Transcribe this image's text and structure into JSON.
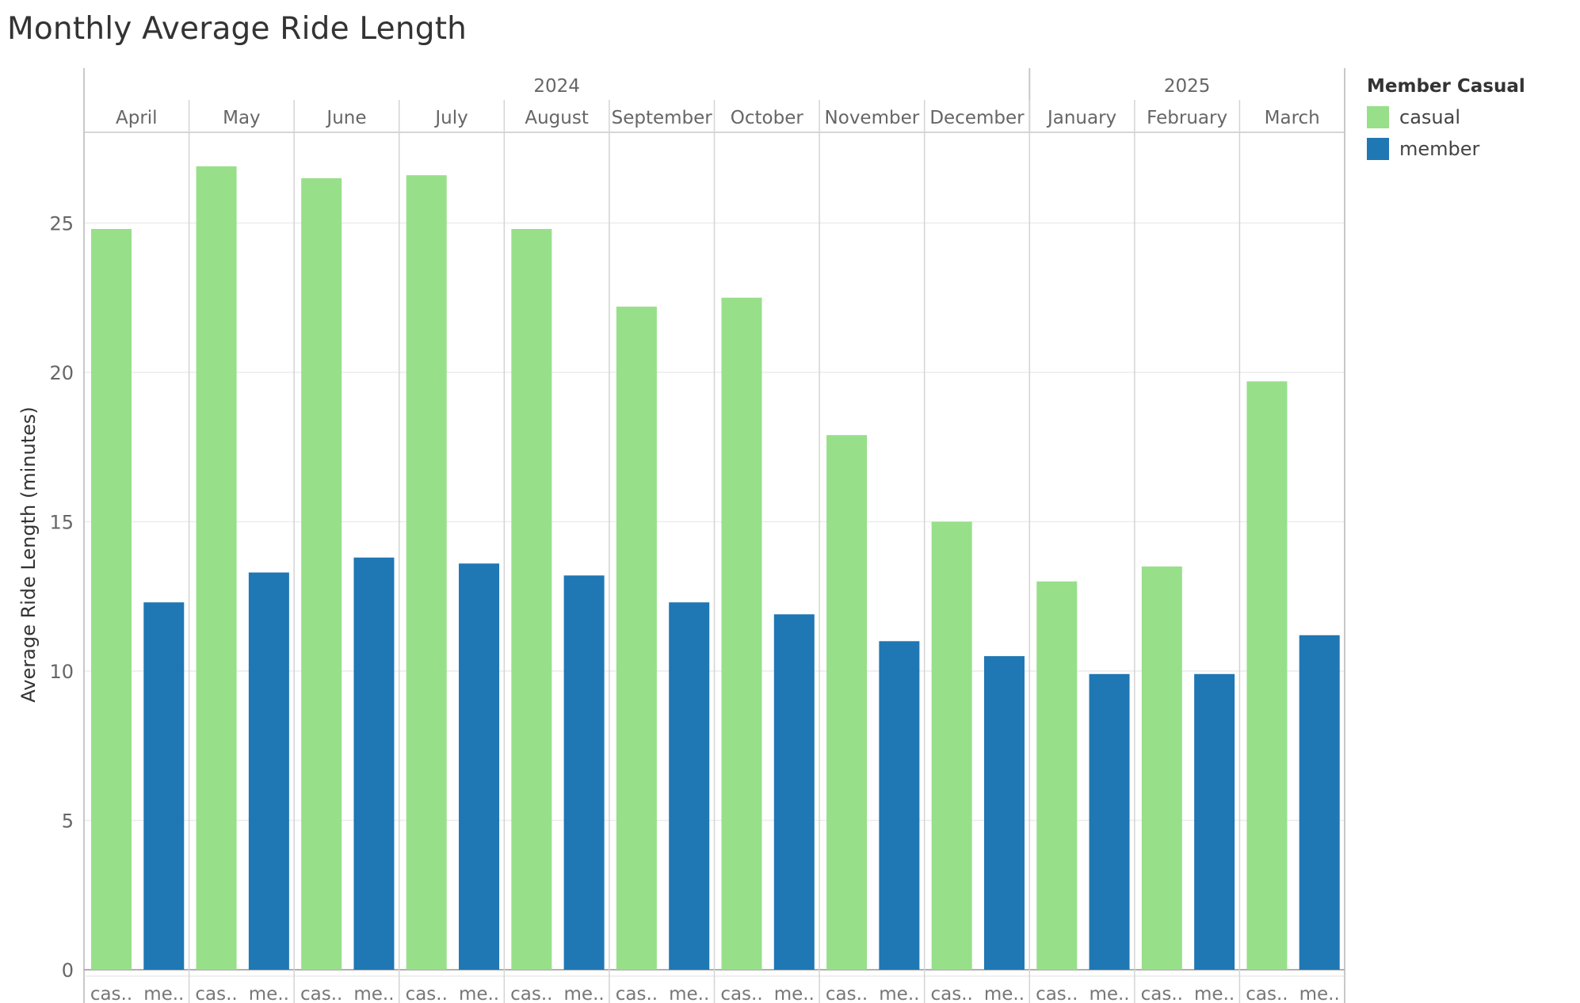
{
  "chart_data": {
    "type": "bar",
    "title": "Monthly Average Ride Length",
    "ylabel": "Average Ride Length (minutes)",
    "xlabel": "",
    "ylim": [
      0,
      28
    ],
    "yticks": [
      0,
      5,
      10,
      15,
      20,
      25
    ],
    "grid": true,
    "legend_position": "right",
    "legend_title": "Member Casual",
    "years": [
      {
        "label": "2024",
        "months": 9
      },
      {
        "label": "2025",
        "months": 3
      }
    ],
    "categories": [
      "April",
      "May",
      "June",
      "July",
      "August",
      "September",
      "October",
      "November",
      "December",
      "January",
      "February",
      "March"
    ],
    "sub_categories": [
      "cas..",
      "me.."
    ],
    "series": [
      {
        "name": "casual",
        "color": "#98df8a",
        "values": [
          24.8,
          26.9,
          26.5,
          26.6,
          24.8,
          22.2,
          22.5,
          17.9,
          15.0,
          13.0,
          13.5,
          19.7
        ]
      },
      {
        "name": "member",
        "color": "#1f77b4",
        "values": [
          12.3,
          13.3,
          13.8,
          13.6,
          13.2,
          12.3,
          11.9,
          11.0,
          10.5,
          9.9,
          9.9,
          11.2
        ]
      }
    ]
  }
}
